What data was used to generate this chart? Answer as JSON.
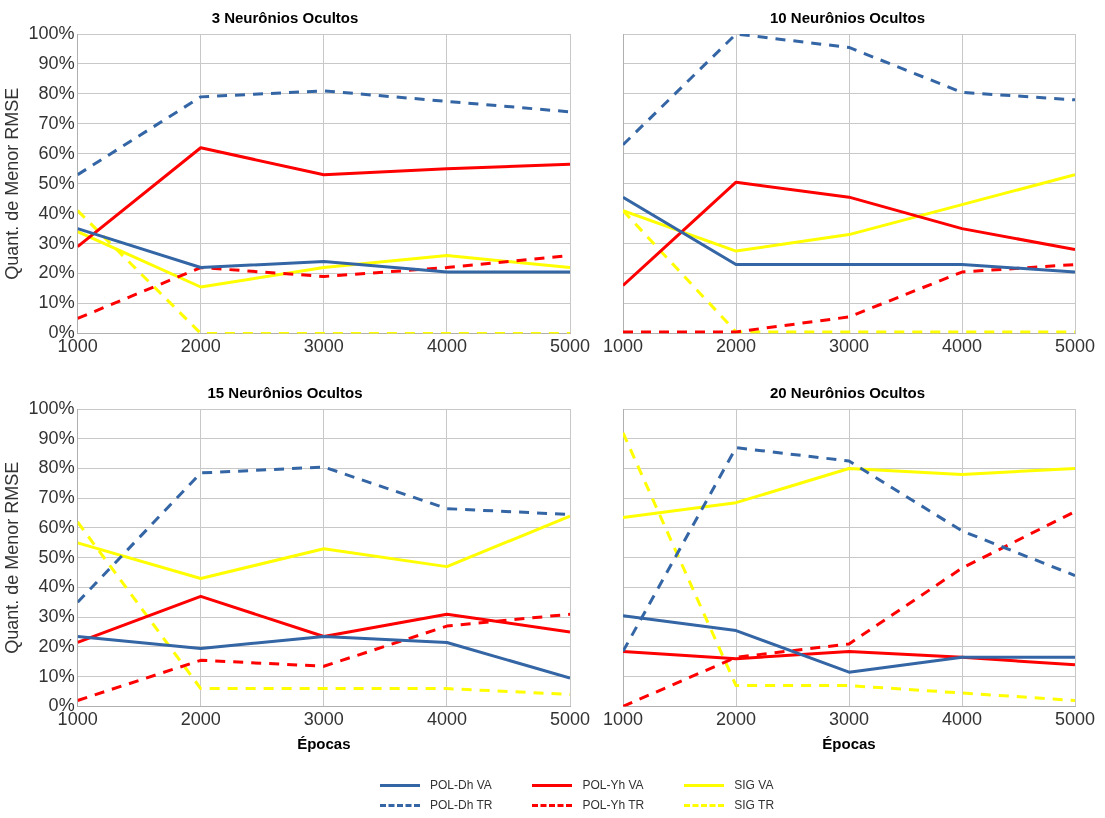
{
  "chart_data": [
    {
      "type": "line",
      "title": "3 Neurônios Ocultos",
      "ylabel": "Quant. de Menor RMSE",
      "x": [
        1000,
        2000,
        3000,
        4000,
        5000
      ],
      "xlim": [
        1000,
        5000
      ],
      "xticks": [
        1000,
        2000,
        3000,
        4000,
        5000
      ],
      "ylim": [
        0,
        100
      ],
      "yticks": [
        {
          "value": 0,
          "label": "0%"
        },
        {
          "value": 10,
          "label": "10%"
        },
        {
          "value": 20,
          "label": "20%"
        },
        {
          "value": 30,
          "label": "30%"
        },
        {
          "value": 40,
          "label": "40%"
        },
        {
          "value": 50,
          "label": "50%"
        },
        {
          "value": 60,
          "label": "60%"
        },
        {
          "value": 70,
          "label": "70%"
        },
        {
          "value": 80,
          "label": "80%"
        },
        {
          "value": 90,
          "label": "90%"
        },
        {
          "value": 100,
          "label": "100%"
        }
      ],
      "grid": true,
      "marker": "none",
      "legend": "bottom",
      "series": [
        {
          "name": "POL-Dh VA",
          "color": "#3465a4",
          "line_style": "solid",
          "values": [
            35,
            22,
            24,
            20.5,
            20.5
          ]
        },
        {
          "name": "POL-Dh TR",
          "color": "#3465a4",
          "line_style": "dashed",
          "values": [
            53,
            79,
            81,
            77.5,
            74
          ]
        },
        {
          "name": "POL-Yh VA",
          "color": "#ff0000",
          "line_style": "solid",
          "values": [
            29,
            62,
            53,
            55,
            56.5
          ]
        },
        {
          "name": "POL-Yh TR",
          "color": "#ff0000",
          "line_style": "dashed",
          "values": [
            5,
            22,
            19,
            22,
            26
          ]
        },
        {
          "name": "SIG VA",
          "color": "#ffff00",
          "line_style": "solid",
          "values": [
            34,
            15.5,
            22,
            26,
            22
          ]
        },
        {
          "name": "SIG TR",
          "color": "#ffff00",
          "line_style": "dashed",
          "values": [
            41,
            0,
            0,
            0,
            0
          ]
        }
      ]
    },
    {
      "type": "line",
      "title": "10 Neurônios Ocultos",
      "x": [
        1000,
        2000,
        3000,
        4000,
        5000
      ],
      "xlim": [
        1000,
        5000
      ],
      "xticks": [
        1000,
        2000,
        3000,
        4000,
        5000
      ],
      "ylim": [
        0,
        100
      ],
      "yticks": [
        0,
        10,
        20,
        30,
        40,
        50,
        60,
        70,
        80,
        90,
        100
      ],
      "grid": true,
      "marker": "none",
      "tick_labels": "x",
      "series": [
        {
          "name": "POL-Dh VA",
          "color": "#3465a4",
          "line_style": "solid",
          "values": [
            45.5,
            23,
            23,
            23,
            20.5
          ]
        },
        {
          "name": "POL-Dh TR",
          "color": "#3465a4",
          "line_style": "dashed",
          "values": [
            63,
            100,
            95.5,
            80.5,
            78
          ]
        },
        {
          "name": "POL-Yh VA",
          "color": "#ff0000",
          "line_style": "solid",
          "values": [
            16,
            50.5,
            45.5,
            35,
            28
          ]
        },
        {
          "name": "POL-Yh TR",
          "color": "#ff0000",
          "line_style": "dashed",
          "values": [
            0.5,
            0.5,
            5.5,
            20.5,
            23
          ]
        },
        {
          "name": "SIG VA",
          "color": "#ffff00",
          "line_style": "solid",
          "values": [
            41,
            27.5,
            33,
            43,
            53
          ]
        },
        {
          "name": "SIG TR",
          "color": "#ffff00",
          "line_style": "dashed",
          "values": [
            41,
            0.5,
            0.5,
            0.5,
            0.5
          ]
        }
      ]
    },
    {
      "type": "line",
      "title": "15 Neurônios Ocultos",
      "ylabel": "Quant. de Menor RMSE",
      "xlabel": "Épocas",
      "x": [
        1000,
        2000,
        3000,
        4000,
        5000
      ],
      "xlim": [
        1000,
        5000
      ],
      "xticks": [
        1000,
        2000,
        3000,
        4000,
        5000
      ],
      "ylim": [
        0,
        100
      ],
      "yticks": [
        {
          "value": 0,
          "label": "0%"
        },
        {
          "value": 10,
          "label": "10%"
        },
        {
          "value": 20,
          "label": "20%"
        },
        {
          "value": 30,
          "label": "30%"
        },
        {
          "value": 40,
          "label": "40%"
        },
        {
          "value": 50,
          "label": "50%"
        },
        {
          "value": 60,
          "label": "60%"
        },
        {
          "value": 70,
          "label": "70%"
        },
        {
          "value": 80,
          "label": "80%"
        },
        {
          "value": 90,
          "label": "90%"
        },
        {
          "value": 100,
          "label": "100%"
        }
      ],
      "grid": true,
      "marker": "none",
      "series": [
        {
          "name": "POL-Dh VA",
          "color": "#3465a4",
          "line_style": "solid",
          "values": [
            23.5,
            19.5,
            23.5,
            21.5,
            9.5
          ]
        },
        {
          "name": "POL-Dh TR",
          "color": "#3465a4",
          "line_style": "dashed",
          "values": [
            35,
            78.5,
            80.5,
            66.5,
            64.5
          ]
        },
        {
          "name": "POL-Yh VA",
          "color": "#ff0000",
          "line_style": "solid",
          "values": [
            21.5,
            37,
            23.5,
            31,
            25
          ]
        },
        {
          "name": "POL-Yh TR",
          "color": "#ff0000",
          "line_style": "dashed",
          "values": [
            2,
            15.5,
            13.5,
            27,
            31
          ]
        },
        {
          "name": "SIG VA",
          "color": "#ffff00",
          "line_style": "solid",
          "values": [
            55,
            43,
            53,
            47,
            64
          ]
        },
        {
          "name": "SIG TR",
          "color": "#ffff00",
          "line_style": "dashed",
          "values": [
            62,
            6,
            6,
            6,
            4
          ]
        }
      ]
    },
    {
      "type": "line",
      "title": "20 Neurônios Ocultos",
      "xlabel": "Épocas",
      "x": [
        1000,
        2000,
        3000,
        4000,
        5000
      ],
      "xlim": [
        1000,
        5000
      ],
      "xticks": [
        1000,
        2000,
        3000,
        4000,
        5000
      ],
      "ylim": [
        0,
        100
      ],
      "yticks": [
        0,
        10,
        20,
        30,
        40,
        50,
        60,
        70,
        80,
        90,
        100
      ],
      "grid": true,
      "marker": "none",
      "tick_labels": "x",
      "series": [
        {
          "name": "POL-Dh VA",
          "color": "#3465a4",
          "line_style": "solid",
          "values": [
            30.5,
            25.5,
            11.5,
            16.5,
            16.5
          ]
        },
        {
          "name": "POL-Dh TR",
          "color": "#3465a4",
          "line_style": "dashed",
          "values": [
            18.5,
            87,
            82.5,
            59,
            44
          ]
        },
        {
          "name": "POL-Yh VA",
          "color": "#ff0000",
          "line_style": "solid",
          "values": [
            18.5,
            16,
            18.5,
            16.5,
            14
          ]
        },
        {
          "name": "POL-Yh TR",
          "color": "#ff0000",
          "line_style": "dashed",
          "values": [
            0,
            16.5,
            21,
            46.5,
            65.5
          ]
        },
        {
          "name": "SIG VA",
          "color": "#ffff00",
          "line_style": "solid",
          "values": [
            63.5,
            68.5,
            80,
            78,
            80
          ]
        },
        {
          "name": "SIG TR",
          "color": "#ffff00",
          "line_style": "dashed",
          "values": [
            92,
            7,
            7,
            4.5,
            2
          ]
        }
      ]
    }
  ]
}
